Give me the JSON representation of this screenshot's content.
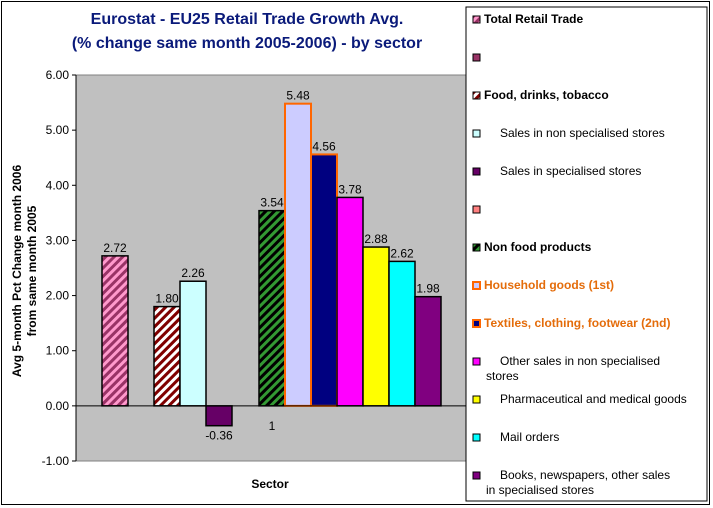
{
  "chart_data": {
    "type": "bar",
    "title": [
      "Eurostat - EU25 Retail Trade Growth Avg.",
      "(% change same month 2005-2006) - by sector"
    ],
    "xlabel": "Sector",
    "ylabel": [
      "Avg 5-month Pct Change month 2006",
      "from same month 2005"
    ],
    "ylim": [
      -1.0,
      6.0
    ],
    "yticks": [
      "6.00",
      "5.00",
      "4.00",
      "3.00",
      "2.00",
      "1.00",
      "0.00",
      "-1.00"
    ],
    "ytick_values": [
      6,
      5,
      4,
      3,
      2,
      1,
      0,
      -1
    ],
    "category_labels": [
      "1"
    ],
    "grid": false,
    "legend_position": "right",
    "series": [
      {
        "name": "Total Retail Trade",
        "value": 2.72,
        "label": "2.72",
        "group": 0,
        "fill": "#993366",
        "pattern": "diag",
        "stroke": "#000000",
        "legend_style": "bold"
      },
      {
        "name": "",
        "value": null,
        "label": "",
        "group": 0,
        "fill": "#993366",
        "pattern": "none",
        "stroke": "#000000",
        "legend_style": "normal"
      },
      {
        "name": "Food, drinks, tobacco",
        "value": 1.8,
        "label": "1.80",
        "group": 1,
        "fill": "#800000",
        "pattern": "diag",
        "stroke": "#000000",
        "legend_style": "bold"
      },
      {
        "name": "Sales in non specialised stores",
        "value": 2.26,
        "label": "2.26",
        "group": 1,
        "fill": "#ccffff",
        "pattern": "none",
        "stroke": "#000000",
        "legend_style": "normal"
      },
      {
        "name": "Sales in specialised stores",
        "value": -0.36,
        "label": "-0.36",
        "group": 1,
        "fill": "#660066",
        "pattern": "none",
        "stroke": "#000000",
        "legend_style": "normal"
      },
      {
        "name": "",
        "value": null,
        "label": "",
        "group": 1,
        "fill": "#ff8080",
        "pattern": "none",
        "stroke": "#000000",
        "legend_style": "normal"
      },
      {
        "name": "Non food products",
        "value": 3.54,
        "label": "3.54",
        "group": 2,
        "fill": "#339933",
        "pattern": "diag",
        "stroke": "#000000",
        "legend_style": "bold"
      },
      {
        "name": "Household goods (1st)",
        "value": 5.48,
        "label": "5.48",
        "group": 2,
        "fill": "#ccccff",
        "pattern": "none",
        "stroke": "#ff6600",
        "legend_style": "orange"
      },
      {
        "name": "Textiles, clothing, footwear (2nd)",
        "value": 4.56,
        "label": "4.56",
        "group": 2,
        "fill": "#000080",
        "pattern": "none",
        "stroke": "#ff6600",
        "legend_style": "orange"
      },
      {
        "name": "Other sales in non specialised stores",
        "value": 3.78,
        "label": "3.78",
        "group": 2,
        "fill": "#ff00ff",
        "pattern": "none",
        "stroke": "#000000",
        "legend_style": "normal"
      },
      {
        "name": "Pharmaceutical and medical goods",
        "value": 2.88,
        "label": "2.88",
        "group": 2,
        "fill": "#ffff00",
        "pattern": "none",
        "stroke": "#000000",
        "legend_style": "normal"
      },
      {
        "name": "Mail orders",
        "value": 2.62,
        "label": "2.62",
        "group": 2,
        "fill": "#00ffff",
        "pattern": "none",
        "stroke": "#000000",
        "legend_style": "normal"
      },
      {
        "name": "Books, newspapers, other sales in specialised stores",
        "value": 1.98,
        "label": "1.98",
        "group": 2,
        "fill": "#800080",
        "pattern": "none",
        "stroke": "#000000",
        "legend_style": "normal"
      }
    ],
    "colors": {
      "plot_background": "#c0c0c0",
      "title": "#0a1a7a",
      "highlight": "#ff6600"
    }
  }
}
